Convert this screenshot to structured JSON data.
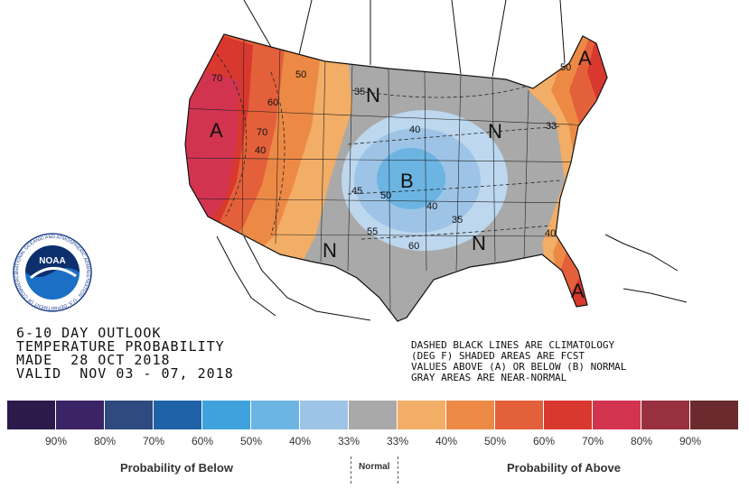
{
  "title": {
    "line1": "6-10 DAY OUTLOOK",
    "line2": "TEMPERATURE PROBABILITY",
    "line3": "MADE  28 OCT 2018",
    "line4": "VALID  NOV 03 - 07, 2018"
  },
  "notes": {
    "line1": "DASHED BLACK LINES ARE CLIMATOLOGY",
    "line2": "(DEG F) SHADED AREAS ARE FCST",
    "line3": "VALUES ABOVE (A) OR BELOW (B) NORMAL",
    "line4": "GRAY AREAS ARE NEAR-NORMAL"
  },
  "map_labels": {
    "above": "A",
    "below": "B",
    "normal": "N"
  },
  "contour_labels": [
    "70",
    "50",
    "60",
    "70",
    "40",
    "35",
    "40",
    "45",
    "50",
    "55",
    "60",
    "40",
    "35",
    "33",
    "40",
    "50"
  ],
  "logo": {
    "text": "NOAA",
    "ring_text": "NATIONAL OCEANIC AND ATMOSPHERIC ADMINISTRATION · U.S. DEPARTMENT OF COMMERCE"
  },
  "legend": {
    "colors": [
      "#2b1a4a",
      "#3a2466",
      "#2e4a7e",
      "#1f62a8",
      "#3fa2dc",
      "#6cb4e2",
      "#9dc4e6",
      "#a9a9a9",
      "#f2ad66",
      "#ec8a45",
      "#e4603a",
      "#d8382e",
      "#d23450",
      "#993040",
      "#6b2a2e"
    ],
    "percent_labels": [
      "90%",
      "80%",
      "70%",
      "60%",
      "50%",
      "40%",
      "33%",
      "33%",
      "40%",
      "50%",
      "60%",
      "70%",
      "80%",
      "90%"
    ],
    "below_label": "Probability of Below",
    "normal_label": "Normal",
    "above_label": "Probability of Above"
  }
}
